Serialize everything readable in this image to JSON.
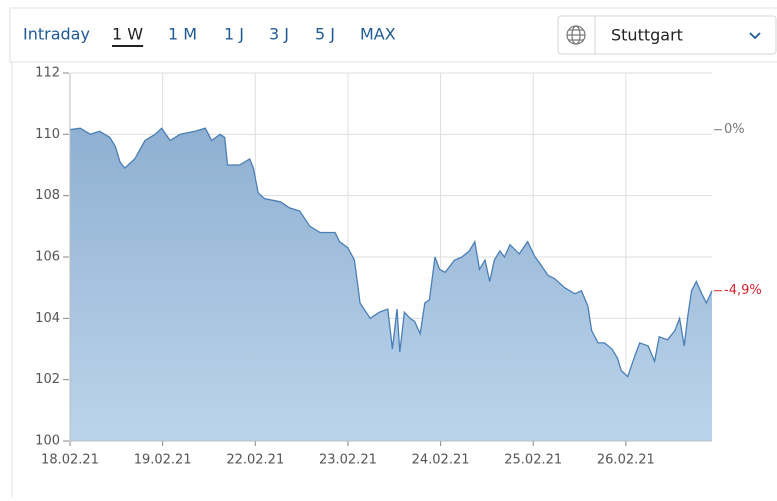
{
  "toolbar": {
    "tabs": [
      "Intraday",
      "1 W",
      "1 M",
      "1 J",
      "3 J",
      "5 J",
      "MAX"
    ],
    "selected": 1,
    "location": "Stuttgart"
  },
  "chart_data": {
    "type": "area",
    "x": [
      0,
      0.11,
      0.22,
      0.32,
      0.43,
      0.49,
      0.54,
      0.59,
      0.7,
      0.81,
      0.92,
      0.99,
      1.08,
      1.19,
      1.35,
      1.46,
      1.53,
      1.62,
      1.67,
      1.7,
      1.83,
      1.94,
      1.98,
      2.03,
      2.1,
      2.27,
      2.37,
      2.48,
      2.59,
      2.7,
      2.86,
      2.91,
      3.0,
      3.07,
      3.11,
      3.13,
      3.24,
      3.34,
      3.43,
      3.48,
      3.53,
      3.56,
      3.61,
      3.67,
      3.72,
      3.78,
      3.83,
      3.88,
      3.94,
      3.99,
      4.05,
      4.15,
      4.23,
      4.31,
      4.37,
      4.42,
      4.48,
      4.53,
      4.58,
      4.64,
      4.69,
      4.75,
      4.85,
      4.94,
      5.02,
      5.07,
      5.16,
      5.23,
      5.34,
      5.45,
      5.52,
      5.59,
      5.63,
      5.7,
      5.77,
      5.85,
      5.91,
      5.95,
      6.02,
      6.1,
      6.15,
      6.24,
      6.31,
      6.36,
      6.45,
      6.53,
      6.58,
      6.63,
      6.67,
      6.71,
      6.76,
      6.82,
      6.87,
      6.93
    ],
    "series": [
      {
        "color": "#4a7fb5",
        "values": [
          110.15,
          110.2,
          110.0,
          110.1,
          109.9,
          109.6,
          109.1,
          108.9,
          109.2,
          109.8,
          110.0,
          110.2,
          109.8,
          110.0,
          110.1,
          110.2,
          109.8,
          110.0,
          109.9,
          109.0,
          109.0,
          109.2,
          108.9,
          108.1,
          107.9,
          107.8,
          107.6,
          107.5,
          107.0,
          106.8,
          106.8,
          106.5,
          106.3,
          105.9,
          105.0,
          104.5,
          104.0,
          104.2,
          104.3,
          103.0,
          104.3,
          102.9,
          104.2,
          104.0,
          103.9,
          103.5,
          104.5,
          104.6,
          106.0,
          105.6,
          105.5,
          105.9,
          106.0,
          106.2,
          106.5,
          105.6,
          105.9,
          105.2,
          105.9,
          106.2,
          106.0,
          106.4,
          106.1,
          106.5,
          106.0,
          105.8,
          105.4,
          105.3,
          105.0,
          104.8,
          104.9,
          104.4,
          103.6,
          103.2,
          103.2,
          103.0,
          102.7,
          102.3,
          102.1,
          102.8,
          103.2,
          103.1,
          102.6,
          103.4,
          103.3,
          103.6,
          104.0,
          103.1,
          104.1,
          104.9,
          105.2,
          104.8,
          104.5,
          104.9
        ]
      }
    ],
    "xlim": [
      0,
      6.93
    ],
    "xticks": [
      {
        "value": 0,
        "label": "18.02.21"
      },
      {
        "value": 1,
        "label": "19.02.21"
      },
      {
        "value": 2,
        "label": "22.02.21"
      },
      {
        "value": 3,
        "label": "23.02.21"
      },
      {
        "value": 4,
        "label": "24.02.21"
      },
      {
        "value": 5,
        "label": "25.02.21"
      },
      {
        "value": 6,
        "label": "26.02.21"
      }
    ],
    "ylim": [
      100,
      112
    ],
    "yticks": [
      100,
      102,
      104,
      106,
      108,
      110,
      112
    ],
    "grid": true,
    "annotations": [
      {
        "value": 110.15,
        "label": "0%",
        "color": "#777777"
      },
      {
        "value": 104.9,
        "label": "-4,9%",
        "color": "#d9232d"
      }
    ]
  }
}
